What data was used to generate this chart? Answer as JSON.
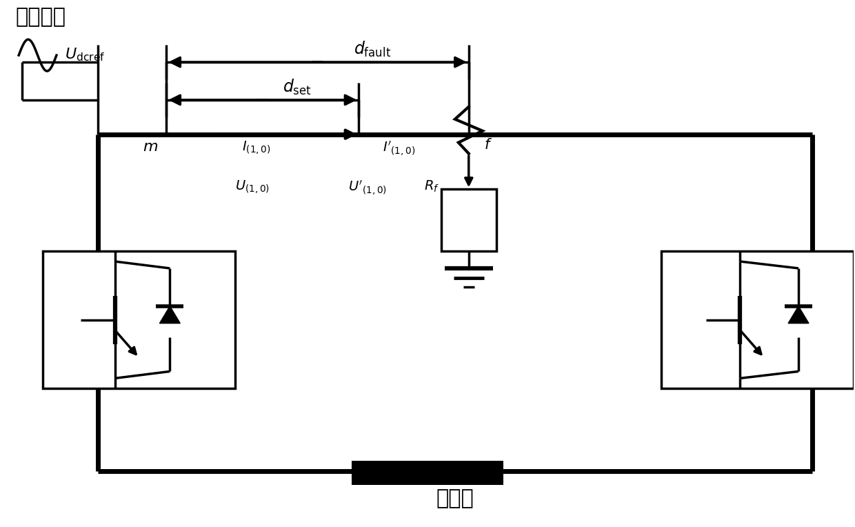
{
  "bg_color": "#ffffff",
  "lc": "#000000",
  "lw": 2.5,
  "tlw": 5.0,
  "fig_width": 12.4,
  "fig_height": 7.64,
  "dpi": 100,
  "xlim": [
    0,
    124
  ],
  "ylim": [
    0,
    76.4
  ],
  "label_zhuru": "注入信号",
  "label_jiankuan": "健全极",
  "m_x": 24,
  "fault_x": 68,
  "bus_top_y": 57,
  "bus_bot_y": 8,
  "dfault_y": 67.5,
  "dset_y": 62.0,
  "dset_end_x": 52
}
